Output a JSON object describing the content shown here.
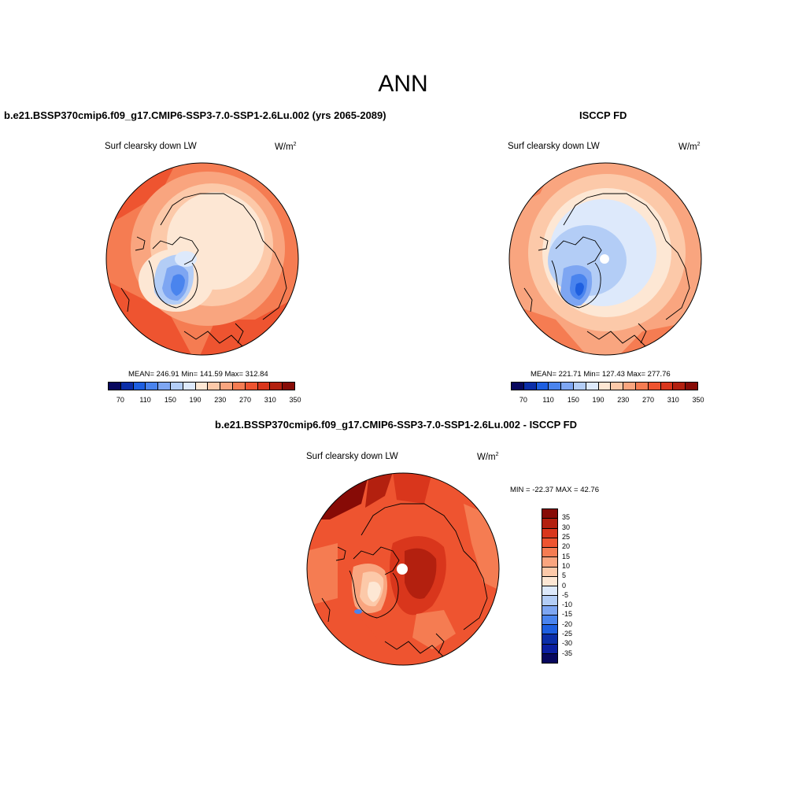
{
  "season": "ANN",
  "panels": {
    "model": {
      "title": "b.e21.BSSP370cmip6.f09_g17.CMIP6-SSP3-7.0-SSP1-2.6Lu.002 (yrs 2065-2089)",
      "variable": "Surf clearsky down LW",
      "units_base": "W/m",
      "units_exp": "2",
      "stats": "MEAN= 246.91  Min= 141.59  Max= 312.84",
      "colorbar_ticks": [
        "70",
        "110",
        "150",
        "190",
        "230",
        "270",
        "310",
        "350"
      ]
    },
    "obs": {
      "title": "ISCCP FD",
      "variable": "Surf clearsky down LW",
      "units_base": "W/m",
      "units_exp": "2",
      "stats": "MEAN= 221.71  Min= 127.43  Max= 277.76",
      "colorbar_ticks": [
        "70",
        "110",
        "150",
        "190",
        "230",
        "270",
        "310",
        "350"
      ]
    },
    "diff": {
      "title": "b.e21.BSSP370cmip6.f09_g17.CMIP6-SSP3-7.0-SSP1-2.6Lu.002 - ISCCP FD",
      "variable": "Surf clearsky down LW",
      "units_base": "W/m",
      "units_exp": "2",
      "stats": "MIN = -22.37 MAX =  42.76",
      "colorbar_ticks": [
        "35",
        "30",
        "25",
        "20",
        "15",
        "10",
        "5",
        "0",
        "-5",
        "-10",
        "-15",
        "-20",
        "-25",
        "-30",
        "-35"
      ]
    }
  },
  "colors": {
    "abs_scale": [
      "#08085e",
      "#0b2ea8",
      "#1e5fe0",
      "#4a84ee",
      "#7ea6f2",
      "#b3cdf6",
      "#dde9fb",
      "#fde7d4",
      "#fcc9a9",
      "#f9a57f",
      "#f57c52",
      "#ee5430",
      "#d9361c",
      "#b3200f",
      "#870b06"
    ],
    "diff_scale": [
      "#870b06",
      "#b3200f",
      "#d9361c",
      "#ee5430",
      "#f57c52",
      "#f9a57f",
      "#fcc9a9",
      "#fde7d4",
      "#dde9fb",
      "#b3cdf6",
      "#7ea6f2",
      "#4a84ee",
      "#1e5fe0",
      "#0b2ea8",
      "#0b1fa0",
      "#08085e"
    ]
  }
}
